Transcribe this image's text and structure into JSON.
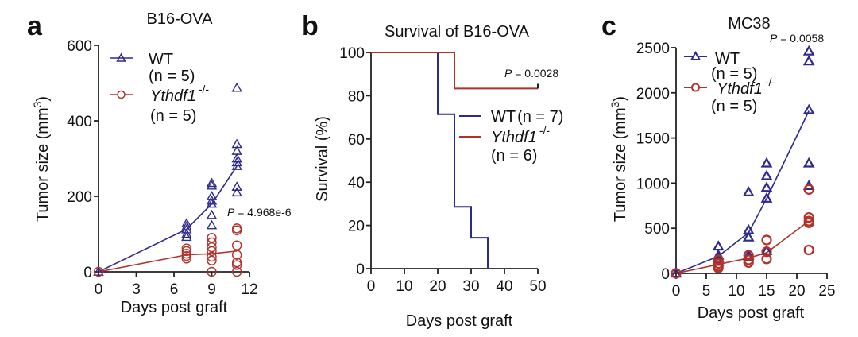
{
  "colors": {
    "wt": "#2e2a8c",
    "ko": "#b2322a",
    "axis": "#222222"
  },
  "chart_data": [
    {
      "panel": "a",
      "type": "scatter",
      "title": "B16-OVA",
      "xlabel": "Days post graft",
      "ylabel": "Tumor size (mm",
      "ylabel_sup": "3",
      "ylabel_close": ")",
      "xlim": [
        0,
        12
      ],
      "ylim": [
        0,
        600
      ],
      "xticks": [
        0,
        3,
        6,
        9,
        12
      ],
      "yticks": [
        0,
        200,
        400,
        600
      ],
      "legend_position": "top-left",
      "annotation": {
        "p_label": "P",
        "p_text": " = 4.968e-6"
      },
      "series": [
        {
          "name": "WT",
          "n_label": "(n = 5)",
          "marker": "triangle",
          "mean_line": {
            "x": [
              0,
              7,
              9,
              11
            ],
            "y": [
              0,
              113,
              180,
              280
            ]
          },
          "points": [
            [
              0,
              0
            ],
            [
              7,
              128
            ],
            [
              7,
              120
            ],
            [
              7,
              112
            ],
            [
              7,
              100
            ],
            [
              7,
              92
            ],
            [
              9,
              235
            ],
            [
              9,
              228
            ],
            [
              9,
              200
            ],
            [
              9,
              188
            ],
            [
              9,
              180
            ],
            [
              9,
              150
            ],
            [
              9,
              123
            ],
            [
              11,
              487
            ],
            [
              11,
              338
            ],
            [
              11,
              320
            ],
            [
              11,
              300
            ],
            [
              11,
              290
            ],
            [
              11,
              280
            ],
            [
              11,
              225
            ],
            [
              11,
              210
            ]
          ]
        },
        {
          "name": "Ythdf1",
          "name_sup": "-/-",
          "n_label": "(n = 5)",
          "marker": "circle",
          "mean_line": {
            "x": [
              0,
              7,
              9,
              11
            ],
            "y": [
              0,
              45,
              48,
              55
            ]
          },
          "points": [
            [
              0,
              0
            ],
            [
              7,
              62
            ],
            [
              7,
              55
            ],
            [
              7,
              48
            ],
            [
              7,
              42
            ],
            [
              7,
              35
            ],
            [
              9,
              90
            ],
            [
              9,
              78
            ],
            [
              9,
              65
            ],
            [
              9,
              55
            ],
            [
              9,
              40
            ],
            [
              9,
              30
            ],
            [
              9,
              0
            ],
            [
              11,
              115
            ],
            [
              11,
              110
            ],
            [
              11,
              70
            ],
            [
              11,
              45
            ],
            [
              11,
              25
            ],
            [
              11,
              18
            ],
            [
              11,
              0
            ]
          ]
        }
      ]
    },
    {
      "panel": "b",
      "type": "line",
      "title": "Survival of B16-OVA",
      "xlabel": "Days post graft",
      "ylabel": "Survival (%)",
      "xlim": [
        0,
        50
      ],
      "ylim": [
        0,
        100
      ],
      "xticks": [
        0,
        10,
        20,
        30,
        40,
        50
      ],
      "yticks": [
        0,
        20,
        40,
        60,
        80,
        100
      ],
      "legend_position": "right",
      "annotation": {
        "p_label": "P",
        "p_text": " = 0.0028"
      },
      "series": [
        {
          "name": "WT",
          "n_label": "(n = 7)",
          "step": {
            "x": [
              0,
              20,
              25,
              30,
              35
            ],
            "y": [
              100,
              71.4,
              28.6,
              14.3,
              0
            ]
          },
          "censored": []
        },
        {
          "name": "Ythdf1",
          "name_sup": "-/-",
          "n_label": "(n = 6)",
          "step": {
            "x": [
              0,
              25,
              50
            ],
            "y": [
              100,
              83.3,
              83.3
            ]
          },
          "censored": [
            [
              50,
              83.3
            ]
          ]
        }
      ]
    },
    {
      "panel": "c",
      "type": "scatter",
      "title": "MC38",
      "xlabel": "Days post graft",
      "ylabel": "Tumor size (mm",
      "ylabel_sup": "3",
      "ylabel_close": ")",
      "xlim": [
        0,
        25
      ],
      "ylim": [
        0,
        2500
      ],
      "xticks": [
        0,
        5,
        10,
        15,
        20,
        25
      ],
      "yticks": [
        0,
        500,
        1000,
        1500,
        2000,
        2500
      ],
      "legend_position": "top-left",
      "annotation": {
        "p_label": "P",
        "p_text": " = 0.0058"
      },
      "series": [
        {
          "name": "WT",
          "n_label": "(n = 5)",
          "marker": "triangle",
          "mean_line": {
            "x": [
              0,
              7,
              12,
              15,
              22
            ],
            "y": [
              0,
              190,
              450,
              830,
              1800
            ]
          },
          "points": [
            [
              0,
              0
            ],
            [
              7,
              300
            ],
            [
              7,
              200
            ],
            [
              7,
              170
            ],
            [
              7,
              150
            ],
            [
              7,
              130
            ],
            [
              12,
              900
            ],
            [
              12,
              480
            ],
            [
              12,
              400
            ],
            [
              12,
              200
            ],
            [
              12,
              180
            ],
            [
              15,
              1220
            ],
            [
              15,
              1080
            ],
            [
              15,
              950
            ],
            [
              15,
              830
            ],
            [
              15,
              250
            ],
            [
              22,
              2460
            ],
            [
              22,
              2350
            ],
            [
              22,
              1810
            ],
            [
              22,
              1220
            ],
            [
              22,
              970
            ]
          ]
        },
        {
          "name": "Ythdf1",
          "name_sup": "-/-",
          "n_label": "(n = 5)",
          "marker": "circle",
          "mean_line": {
            "x": [
              0,
              7,
              12,
              15,
              22
            ],
            "y": [
              0,
              100,
              170,
              230,
              580
            ]
          },
          "points": [
            [
              0,
              0
            ],
            [
              7,
              150
            ],
            [
              7,
              110
            ],
            [
              7,
              80
            ],
            [
              7,
              60
            ],
            [
              12,
              200
            ],
            [
              12,
              150
            ],
            [
              12,
              120
            ],
            [
              15,
              370
            ],
            [
              15,
              240
            ],
            [
              15,
              160
            ],
            [
              22,
              930
            ],
            [
              22,
              620
            ],
            [
              22,
              580
            ],
            [
              22,
              560
            ],
            [
              22,
              260
            ]
          ]
        }
      ]
    }
  ]
}
